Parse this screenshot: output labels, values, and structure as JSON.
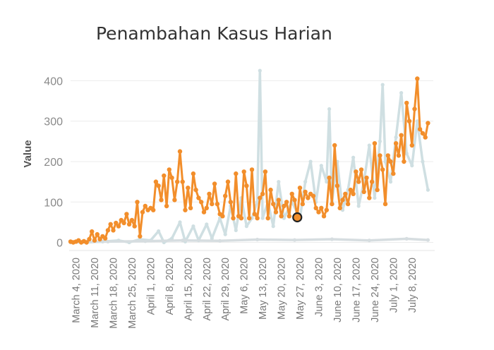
{
  "chart_data": {
    "type": "line",
    "title": "Penambahan Kasus Harian",
    "xlabel": "",
    "ylabel": "Value",
    "ylim": [
      -20,
      460
    ],
    "yticks": [
      0,
      100,
      200,
      300,
      400
    ],
    "x_start": "2020-03-02",
    "x_end": "2020-07-16",
    "xticks": [
      {
        "date": "2020-03-04",
        "label": "March 4, 2020"
      },
      {
        "date": "2020-03-11",
        "label": "March 11, 2020"
      },
      {
        "date": "2020-03-18",
        "label": "March 18, 2020"
      },
      {
        "date": "2020-03-25",
        "label": "March 25, 2020"
      },
      {
        "date": "2020-04-01",
        "label": "April 1, 2020"
      },
      {
        "date": "2020-04-08",
        "label": "April 8, 2020"
      },
      {
        "date": "2020-04-15",
        "label": "April 15, 2020"
      },
      {
        "date": "2020-04-22",
        "label": "April 22, 2020"
      },
      {
        "date": "2020-04-29",
        "label": "April 29, 2020"
      },
      {
        "date": "2020-05-06",
        "label": "May 6, 2020"
      },
      {
        "date": "2020-05-13",
        "label": "May 13, 2020"
      },
      {
        "date": "2020-05-20",
        "label": "May 20, 2020"
      },
      {
        "date": "2020-05-27",
        "label": "May 27, 2020"
      },
      {
        "date": "2020-06-03",
        "label": "June 3, 2020"
      },
      {
        "date": "2020-06-10",
        "label": "June 10, 2020"
      },
      {
        "date": "2020-06-17",
        "label": "June 17, 2020"
      },
      {
        "date": "2020-06-24",
        "label": "June 24, 2020"
      },
      {
        "date": "2020-07-01",
        "label": "July 1, 2020"
      },
      {
        "date": "2020-07-08",
        "label": "July 8, 2020"
      }
    ],
    "grid": true,
    "highlight": {
      "date": "2020-05-26",
      "value": 62
    },
    "series": [
      {
        "color": "#f28e2b",
        "points": [
          [
            "2020-03-02",
            2
          ],
          [
            "2020-03-03",
            0
          ],
          [
            "2020-03-04",
            2
          ],
          [
            "2020-03-05",
            5
          ],
          [
            "2020-03-06",
            0
          ],
          [
            "2020-03-07",
            3
          ],
          [
            "2020-03-08",
            0
          ],
          [
            "2020-03-09",
            8
          ],
          [
            "2020-03-10",
            27
          ],
          [
            "2020-03-11",
            5
          ],
          [
            "2020-03-12",
            20
          ],
          [
            "2020-03-13",
            8
          ],
          [
            "2020-03-14",
            15
          ],
          [
            "2020-03-15",
            10
          ],
          [
            "2020-03-16",
            30
          ],
          [
            "2020-03-17",
            45
          ],
          [
            "2020-03-18",
            30
          ],
          [
            "2020-03-19",
            48
          ],
          [
            "2020-03-20",
            40
          ],
          [
            "2020-03-21",
            55
          ],
          [
            "2020-03-22",
            48
          ],
          [
            "2020-03-23",
            70
          ],
          [
            "2020-03-24",
            45
          ],
          [
            "2020-03-25",
            55
          ],
          [
            "2020-03-26",
            40
          ],
          [
            "2020-03-27",
            100
          ],
          [
            "2020-03-28",
            15
          ],
          [
            "2020-03-29",
            75
          ],
          [
            "2020-03-30",
            90
          ],
          [
            "2020-03-31",
            80
          ],
          [
            "2020-04-01",
            85
          ],
          [
            "2020-04-02",
            80
          ],
          [
            "2020-04-03",
            150
          ],
          [
            "2020-04-04",
            140
          ],
          [
            "2020-04-05",
            105
          ],
          [
            "2020-04-06",
            165
          ],
          [
            "2020-04-07",
            90
          ],
          [
            "2020-04-08",
            180
          ],
          [
            "2020-04-09",
            160
          ],
          [
            "2020-04-10",
            105
          ],
          [
            "2020-04-11",
            150
          ],
          [
            "2020-04-12",
            225
          ],
          [
            "2020-04-13",
            150
          ],
          [
            "2020-04-14",
            80
          ],
          [
            "2020-04-15",
            135
          ],
          [
            "2020-04-16",
            85
          ],
          [
            "2020-04-17",
            170
          ],
          [
            "2020-04-18",
            130
          ],
          [
            "2020-04-19",
            110
          ],
          [
            "2020-04-20",
            100
          ],
          [
            "2020-04-21",
            75
          ],
          [
            "2020-04-22",
            85
          ],
          [
            "2020-04-23",
            120
          ],
          [
            "2020-04-24",
            95
          ],
          [
            "2020-04-25",
            145
          ],
          [
            "2020-04-26",
            95
          ],
          [
            "2020-04-27",
            70
          ],
          [
            "2020-04-28",
            65
          ],
          [
            "2020-04-29",
            115
          ],
          [
            "2020-04-30",
            150
          ],
          [
            "2020-05-01",
            100
          ],
          [
            "2020-05-02",
            60
          ],
          [
            "2020-05-03",
            170
          ],
          [
            "2020-05-04",
            65
          ],
          [
            "2020-05-05",
            60
          ],
          [
            "2020-05-06",
            175
          ],
          [
            "2020-05-07",
            140
          ],
          [
            "2020-05-08",
            60
          ],
          [
            "2020-05-09",
            180
          ],
          [
            "2020-05-10",
            70
          ],
          [
            "2020-05-11",
            60
          ],
          [
            "2020-05-12",
            110
          ],
          [
            "2020-05-13",
            120
          ],
          [
            "2020-05-14",
            175
          ],
          [
            "2020-05-15",
            60
          ],
          [
            "2020-05-16",
            130
          ],
          [
            "2020-05-17",
            95
          ],
          [
            "2020-05-18",
            75
          ],
          [
            "2020-05-19",
            105
          ],
          [
            "2020-05-20",
            65
          ],
          [
            "2020-05-21",
            90
          ],
          [
            "2020-05-22",
            100
          ],
          [
            "2020-05-23",
            65
          ],
          [
            "2020-05-24",
            120
          ],
          [
            "2020-05-25",
            105
          ],
          [
            "2020-05-26",
            62
          ],
          [
            "2020-05-27",
            135
          ],
          [
            "2020-05-28",
            95
          ],
          [
            "2020-05-29",
            125
          ],
          [
            "2020-05-30",
            110
          ],
          [
            "2020-05-31",
            120
          ],
          [
            "2020-06-01",
            115
          ],
          [
            "2020-06-02",
            85
          ],
          [
            "2020-06-03",
            75
          ],
          [
            "2020-06-04",
            85
          ],
          [
            "2020-06-05",
            65
          ],
          [
            "2020-06-06",
            80
          ],
          [
            "2020-06-07",
            160
          ],
          [
            "2020-06-08",
            95
          ],
          [
            "2020-06-09",
            240
          ],
          [
            "2020-06-10",
            140
          ],
          [
            "2020-06-11",
            85
          ],
          [
            "2020-06-12",
            105
          ],
          [
            "2020-06-13",
            120
          ],
          [
            "2020-06-14",
            95
          ],
          [
            "2020-06-15",
            130
          ],
          [
            "2020-06-16",
            120
          ],
          [
            "2020-06-17",
            175
          ],
          [
            "2020-06-18",
            150
          ],
          [
            "2020-06-19",
            180
          ],
          [
            "2020-06-20",
            125
          ],
          [
            "2020-06-21",
            160
          ],
          [
            "2020-06-22",
            110
          ],
          [
            "2020-06-23",
            150
          ],
          [
            "2020-06-24",
            245
          ],
          [
            "2020-06-25",
            130
          ],
          [
            "2020-06-26",
            215
          ],
          [
            "2020-06-27",
            180
          ],
          [
            "2020-06-28",
            95
          ],
          [
            "2020-06-29",
            215
          ],
          [
            "2020-06-30",
            200
          ],
          [
            "2020-07-01",
            170
          ],
          [
            "2020-07-02",
            245
          ],
          [
            "2020-07-03",
            215
          ],
          [
            "2020-07-04",
            265
          ],
          [
            "2020-07-05",
            200
          ],
          [
            "2020-07-06",
            345
          ],
          [
            "2020-07-07",
            300
          ],
          [
            "2020-07-08",
            240
          ],
          [
            "2020-07-09",
            330
          ],
          [
            "2020-07-10",
            405
          ],
          [
            "2020-07-11",
            280
          ],
          [
            "2020-07-12",
            270
          ],
          [
            "2020-07-13",
            260
          ],
          [
            "2020-07-14",
            295
          ]
        ]
      },
      {
        "color": "#cfdfe2",
        "points": [
          [
            "2020-03-02",
            0
          ],
          [
            "2020-03-08",
            0
          ],
          [
            "2020-03-14",
            2
          ],
          [
            "2020-03-20",
            5
          ],
          [
            "2020-03-24",
            0
          ],
          [
            "2020-03-28",
            8
          ],
          [
            "2020-04-01",
            5
          ],
          [
            "2020-04-04",
            28
          ],
          [
            "2020-04-06",
            0
          ],
          [
            "2020-04-09",
            10
          ],
          [
            "2020-04-12",
            50
          ],
          [
            "2020-04-14",
            2
          ],
          [
            "2020-04-17",
            40
          ],
          [
            "2020-04-19",
            5
          ],
          [
            "2020-04-22",
            45
          ],
          [
            "2020-04-24",
            10
          ],
          [
            "2020-04-27",
            60
          ],
          [
            "2020-04-29",
            20
          ],
          [
            "2020-05-01",
            90
          ],
          [
            "2020-05-03",
            30
          ],
          [
            "2020-05-05",
            110
          ],
          [
            "2020-05-07",
            40
          ],
          [
            "2020-05-09",
            60
          ],
          [
            "2020-05-11",
            100
          ],
          [
            "2020-05-12",
            425
          ],
          [
            "2020-05-13",
            60
          ],
          [
            "2020-05-15",
            100
          ],
          [
            "2020-05-17",
            40
          ],
          [
            "2020-05-19",
            150
          ],
          [
            "2020-05-21",
            60
          ],
          [
            "2020-05-24",
            100
          ],
          [
            "2020-05-27",
            60
          ],
          [
            "2020-05-29",
            150
          ],
          [
            "2020-05-31",
            200
          ],
          [
            "2020-06-02",
            100
          ],
          [
            "2020-06-04",
            190
          ],
          [
            "2020-06-06",
            150
          ],
          [
            "2020-06-07",
            330
          ],
          [
            "2020-06-08",
            100
          ],
          [
            "2020-06-10",
            200
          ],
          [
            "2020-06-12",
            80
          ],
          [
            "2020-06-14",
            130
          ],
          [
            "2020-06-16",
            210
          ],
          [
            "2020-06-18",
            90
          ],
          [
            "2020-06-20",
            150
          ],
          [
            "2020-06-22",
            240
          ],
          [
            "2020-06-24",
            110
          ],
          [
            "2020-06-26",
            250
          ],
          [
            "2020-06-27",
            390
          ],
          [
            "2020-06-28",
            200
          ],
          [
            "2020-06-30",
            150
          ],
          [
            "2020-07-02",
            260
          ],
          [
            "2020-07-04",
            370
          ],
          [
            "2020-07-06",
            220
          ],
          [
            "2020-07-08",
            190
          ],
          [
            "2020-07-10",
            300
          ],
          [
            "2020-07-12",
            200
          ],
          [
            "2020-07-14",
            130
          ]
        ]
      },
      {
        "color": "#d6dde0",
        "points": [
          [
            "2020-03-02",
            0
          ],
          [
            "2020-03-16",
            2
          ],
          [
            "2020-03-30",
            3
          ],
          [
            "2020-04-13",
            5
          ],
          [
            "2020-04-27",
            4
          ],
          [
            "2020-05-11",
            7
          ],
          [
            "2020-05-25",
            6
          ],
          [
            "2020-06-08",
            8
          ],
          [
            "2020-06-22",
            5
          ],
          [
            "2020-07-06",
            9
          ],
          [
            "2020-07-14",
            6
          ]
        ]
      }
    ]
  }
}
